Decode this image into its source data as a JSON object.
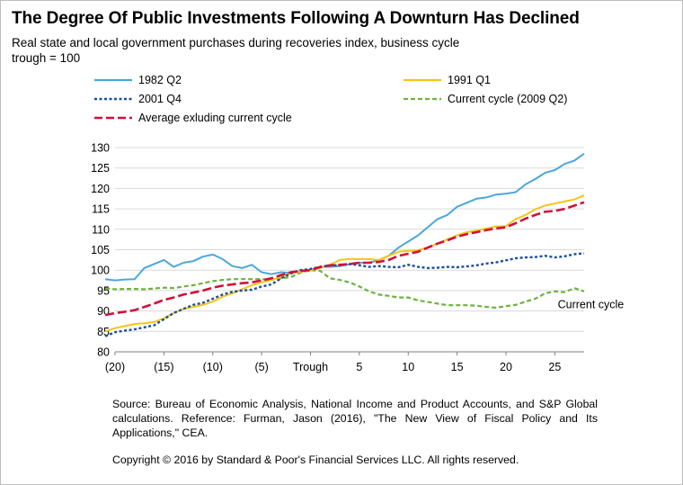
{
  "header": {
    "title": "The Degree Of Public Investments Following A Downturn Has Declined",
    "subtitle": "Real state and local government purchases during recoveries index, business cycle trough = 100"
  },
  "footer": {
    "source": "Source: Bureau of Economic Analysis, National Income and Product Accounts, and S&P Global calculations. Reference: Furman, Jason (2016), \"The New View of Fiscal Policy and Its Applications,\" CEA.",
    "copyright": "Copyright © 2016 by Standard & Poor's Financial Services LLC. All rights reserved."
  },
  "chart_data": {
    "type": "line",
    "title": "",
    "xlabel": "",
    "ylabel": "",
    "xlim": [
      -20,
      28
    ],
    "ylim": [
      80,
      130
    ],
    "y_ticks": [
      80,
      85,
      90,
      95,
      100,
      105,
      110,
      115,
      120,
      125,
      130
    ],
    "x_ticks": [
      {
        "x": -20,
        "label": "(20)"
      },
      {
        "x": -15,
        "label": "(15)"
      },
      {
        "x": -10,
        "label": "(10)"
      },
      {
        "x": -5,
        "label": "(5)"
      },
      {
        "x": 0,
        "label": "Trough"
      },
      {
        "x": 5,
        "label": "5"
      },
      {
        "x": 10,
        "label": "10"
      },
      {
        "x": 15,
        "label": "15"
      },
      {
        "x": 20,
        "label": "20"
      },
      {
        "x": 25,
        "label": "25"
      }
    ],
    "grid": true,
    "legend_position": "top",
    "annotations": [
      {
        "text": "Current cycle",
        "x": 25.3,
        "y": 90.7
      }
    ],
    "series": [
      {
        "name": "1982 Q2",
        "color": "#4aa8d8",
        "dash": "solid",
        "x": [
          -21,
          -20,
          -19,
          -18,
          -17,
          -16,
          -15,
          -14,
          -13,
          -12,
          -11,
          -10,
          -9,
          -8,
          -7,
          -6,
          -5,
          -4,
          -3,
          -2,
          -1,
          0,
          1,
          2,
          3,
          4,
          5,
          6,
          7,
          8,
          9,
          10,
          11,
          12,
          13,
          14,
          15,
          16,
          17,
          18,
          19,
          20,
          21,
          22,
          23,
          24,
          25,
          26,
          27,
          28
        ],
        "y": [
          97.8,
          97.5,
          97.7,
          97.8,
          100.5,
          101.5,
          102.5,
          100.8,
          101.8,
          102.2,
          103.3,
          103.8,
          102.7,
          101,
          100.5,
          101.3,
          99.5,
          99,
          99.5,
          99.3,
          99.8,
          100,
          100.8,
          100.8,
          101,
          101.4,
          101.8,
          101.8,
          102.5,
          103.5,
          105.5,
          107,
          108.5,
          110.5,
          112.5,
          113.5,
          115.5,
          116.5,
          117.5,
          117.8,
          118.5,
          118.7,
          119.1,
          121,
          122.3,
          123.8,
          124.5,
          126,
          126.8,
          128.5
        ]
      },
      {
        "name": "1991 Q1",
        "color": "#f5c518",
        "dash": "solid",
        "x": [
          -21,
          -20,
          -19,
          -18,
          -17,
          -16,
          -15,
          -14,
          -13,
          -12,
          -11,
          -10,
          -9,
          -8,
          -7,
          -6,
          -5,
          -4,
          -3,
          -2,
          -1,
          0,
          1,
          2,
          3,
          4,
          5,
          6,
          7,
          8,
          9,
          10,
          11,
          12,
          13,
          14,
          15,
          16,
          17,
          18,
          19,
          20,
          21,
          22,
          23,
          24,
          25,
          26,
          27,
          28
        ],
        "y": [
          85,
          85.8,
          86.3,
          86.8,
          87,
          87.3,
          88.2,
          89.5,
          90.5,
          91,
          91.5,
          92.3,
          93.5,
          94.3,
          95.3,
          96.3,
          97,
          97.6,
          98.3,
          99.3,
          99.6,
          100,
          100.5,
          101.3,
          102.5,
          102.7,
          102.7,
          102.7,
          102.5,
          103.5,
          104.5,
          104.7,
          104.9,
          105.5,
          106.5,
          107.5,
          108.5,
          109.3,
          109.7,
          110.2,
          110.7,
          110.8,
          112.5,
          113.5,
          114.9,
          115.8,
          116.3,
          116.8,
          117.3,
          118.3
        ]
      },
      {
        "name": "2001 Q4",
        "color": "#1a4fa0",
        "dash": "dotted",
        "x": [
          -21,
          -20,
          -19,
          -18,
          -17,
          -16,
          -15,
          -14,
          -13,
          -12,
          -11,
          -10,
          -9,
          -8,
          -7,
          -6,
          -5,
          -4,
          -3,
          -2,
          -1,
          0,
          1,
          2,
          3,
          4,
          5,
          6,
          7,
          8,
          9,
          10,
          11,
          12,
          13,
          14,
          15,
          16,
          17,
          18,
          19,
          20,
          21,
          22,
          23,
          24,
          25,
          26,
          27,
          28
        ],
        "y": [
          83.8,
          84.8,
          85.2,
          85.5,
          86,
          86.5,
          88,
          89.5,
          90.5,
          91.5,
          92,
          93,
          94,
          94.7,
          95,
          95.2,
          96,
          96.5,
          98,
          99.2,
          100,
          100.3,
          100.8,
          101.2,
          101.2,
          101.5,
          101.2,
          100.8,
          101,
          100.8,
          100.7,
          101.3,
          100.8,
          100.5,
          100.6,
          100.8,
          100.7,
          100.9,
          101.2,
          101.6,
          101.9,
          102.4,
          102.9,
          103.1,
          103.2,
          103.5,
          103.1,
          103.4,
          103.9,
          104.1
        ]
      },
      {
        "name": "Current cycle (2009 Q2)",
        "color": "#6db33f",
        "dash": "dashed",
        "x": [
          -21,
          -20,
          -19,
          -18,
          -17,
          -16,
          -15,
          -14,
          -13,
          -12,
          -11,
          -10,
          -9,
          -8,
          -7,
          -6,
          -5,
          -4,
          -3,
          -2,
          -1,
          0,
          1,
          2,
          3,
          4,
          5,
          6,
          7,
          8,
          9,
          10,
          11,
          12,
          13,
          14,
          15,
          16,
          17,
          18,
          19,
          20,
          21,
          22,
          23,
          24,
          25,
          26,
          27,
          28
        ],
        "y": [
          95.5,
          95.3,
          95.4,
          95.4,
          95.3,
          95.5,
          95.7,
          95.6,
          96,
          96.3,
          96.8,
          97.3,
          97.6,
          97.8,
          97.8,
          97.8,
          97.8,
          97.6,
          98,
          98.3,
          99.4,
          100,
          99.8,
          98,
          97.6,
          97,
          96,
          94.8,
          94,
          93.7,
          93.3,
          93.3,
          92.6,
          92.2,
          91.8,
          91.4,
          91.4,
          91.4,
          91.3,
          91,
          90.8,
          91.2,
          91.5,
          92.3,
          93,
          94.3,
          94.8,
          94.6,
          95.6,
          94.8
        ]
      },
      {
        "name": "Average exluding current cycle",
        "color": "#d0103a",
        "dash": "longdash",
        "x": [
          -21,
          -20,
          -19,
          -18,
          -17,
          -16,
          -15,
          -14,
          -13,
          -12,
          -11,
          -10,
          -9,
          -8,
          -7,
          -6,
          -5,
          -4,
          -3,
          -2,
          -1,
          0,
          1,
          2,
          3,
          4,
          5,
          6,
          7,
          8,
          9,
          10,
          11,
          12,
          13,
          14,
          15,
          16,
          17,
          18,
          19,
          20,
          21,
          22,
          23,
          24,
          25,
          26,
          27,
          28
        ],
        "y": [
          89,
          89.5,
          89.8,
          90.2,
          91,
          91.8,
          92.7,
          93.3,
          94,
          94.5,
          95,
          95.7,
          96.2,
          96.5,
          96.8,
          97,
          97.5,
          98,
          98.8,
          99.5,
          99.8,
          100,
          100.8,
          101.2,
          101.3,
          101.5,
          101.8,
          101.8,
          102,
          102.5,
          103.5,
          104,
          104.5,
          105.5,
          106.5,
          107.3,
          108.2,
          108.8,
          109.3,
          109.8,
          110.2,
          110.5,
          111.5,
          112.6,
          113.5,
          114.3,
          114.5,
          115,
          115.8,
          116.6
        ]
      }
    ]
  }
}
